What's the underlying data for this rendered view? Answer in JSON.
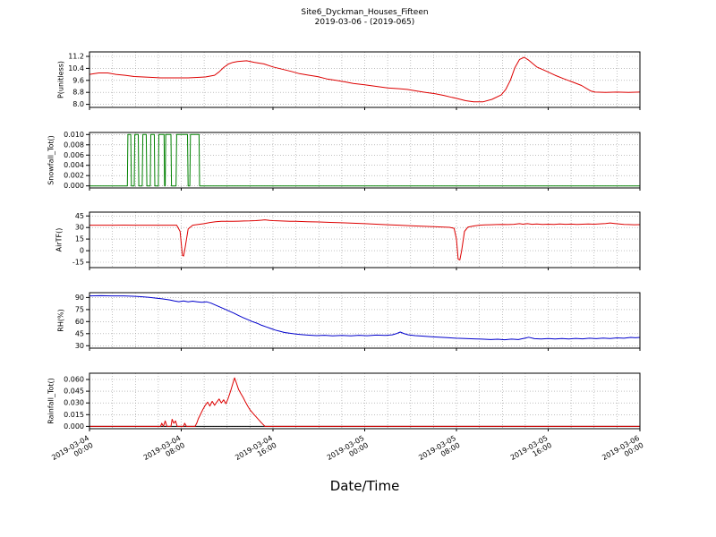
{
  "page": {
    "background": "#ffffff"
  },
  "chart_data": {
    "type": "line",
    "title": "Site6_Dyckman_Houses_Fifteen",
    "subtitle": "2019-03-06 - (2019-065)",
    "xlabel": "Date/Time",
    "x_range": [
      0,
      48
    ],
    "x_minor_step": 2,
    "grid_color": "#999999",
    "legend": "none",
    "xticks": [
      {
        "v": 0,
        "label": "2019-03-04\n00:00"
      },
      {
        "v": 8,
        "label": "2019-03-04\n08:00"
      },
      {
        "v": 16,
        "label": "2019-03-04\n16:00"
      },
      {
        "v": 24,
        "label": "2019-03-05\n00:00"
      },
      {
        "v": 32,
        "label": "2019-03-05\n08:00"
      },
      {
        "v": 40,
        "label": "2019-03-05\n16:00"
      },
      {
        "v": 48,
        "label": "2019-03-06\n00:00"
      }
    ],
    "panels": [
      {
        "ylabel": "P(unitless)",
        "color": "#dd0000",
        "ylim": [
          7.8,
          11.5
        ],
        "yticks": [
          8.0,
          8.8,
          9.6,
          10.4,
          11.2
        ],
        "ytick_labels": [
          "8.0",
          "8.8",
          "9.6",
          "10.4",
          "11.2"
        ],
        "zero_line": false,
        "x": [
          0,
          0.8,
          1.6,
          2.3,
          3.1,
          3.9,
          4.7,
          5.5,
          6.2,
          7,
          7.8,
          8.6,
          9.4,
          10.1,
          10.9,
          11.3,
          11.7,
          12.1,
          12.5,
          12.9,
          13.7,
          14.4,
          15.2,
          16,
          16.8,
          17.6,
          18.3,
          19.1,
          19.9,
          20.7,
          21.5,
          22.3,
          23,
          24,
          25,
          26,
          27,
          27.7,
          28.5,
          29.3,
          30.1,
          30.9,
          31.6,
          32,
          32.8,
          33.5,
          34.3,
          35.1,
          35.9,
          36.3,
          36.7,
          37.1,
          37.5,
          37.9,
          38.3,
          39,
          39.8,
          40.6,
          41.4,
          42.1,
          42.9,
          43.7,
          44.1,
          45,
          46,
          47,
          48
        ],
        "y": [
          10,
          10.1,
          10.1,
          10,
          9.94,
          9.86,
          9.83,
          9.8,
          9.77,
          9.77,
          9.77,
          9.77,
          9.8,
          9.83,
          9.94,
          10.17,
          10.46,
          10.69,
          10.8,
          10.86,
          10.91,
          10.8,
          10.7,
          10.5,
          10.35,
          10.2,
          10.05,
          9.95,
          9.85,
          9.7,
          9.6,
          9.5,
          9.4,
          9.31,
          9.2,
          9.1,
          9.05,
          9,
          8.9,
          8.8,
          8.72,
          8.6,
          8.47,
          8.4,
          8.25,
          8.17,
          8.17,
          8.34,
          8.63,
          9,
          9.6,
          10.45,
          11,
          11.14,
          10.95,
          10.5,
          10.23,
          9.94,
          9.7,
          9.5,
          9.26,
          8.9,
          8.82,
          8.8,
          8.82,
          8.8,
          8.82
        ]
      },
      {
        "ylabel": "Snowfall_Tot()",
        "color": "#008000",
        "ylim": [
          -0.0004,
          0.0104
        ],
        "yticks": [
          0.0,
          0.002,
          0.004,
          0.006,
          0.008,
          0.01
        ],
        "ytick_labels": [
          "0.000",
          "0.002",
          "0.004",
          "0.006",
          "0.008",
          "0.010"
        ],
        "zero_line": false,
        "x": [
          0,
          3.3,
          3.35,
          3.6,
          3.65,
          3.9,
          3.95,
          4.25,
          4.3,
          4.6,
          4.65,
          4.95,
          5,
          5.3,
          5.35,
          5.65,
          5.7,
          6,
          6.05,
          6.5,
          6.55,
          6.6,
          6.65,
          7.1,
          7.15,
          7.55,
          7.6,
          8.55,
          8.6,
          8.75,
          8.8,
          9.55,
          9.6,
          48
        ],
        "y": [
          0,
          0,
          0.01,
          0.01,
          0,
          0,
          0.01,
          0.01,
          0,
          0,
          0.01,
          0.01,
          0,
          0,
          0.01,
          0.01,
          0,
          0,
          0.01,
          0.01,
          0,
          0,
          0.01,
          0.01,
          0,
          0,
          0.01,
          0.01,
          0,
          0,
          0.01,
          0.01,
          0,
          0
        ]
      },
      {
        "ylabel": "AirTF()",
        "color": "#dd0000",
        "ylim": [
          -22,
          50
        ],
        "yticks": [
          -15,
          0,
          15,
          30,
          45
        ],
        "ytick_labels": [
          "-15",
          "0",
          "15",
          "30",
          "45"
        ],
        "zero_line": false,
        "x": [
          0,
          1,
          2,
          3,
          4,
          5,
          6,
          7,
          7.6,
          7.9,
          8.1,
          8.2,
          8.35,
          8.6,
          9,
          9.5,
          10,
          10.5,
          11,
          11.5,
          12,
          12.5,
          13,
          13.5,
          14,
          14.5,
          15,
          15.3,
          15.7,
          16,
          16.5,
          17,
          17.5,
          18,
          19,
          20,
          21,
          22,
          23,
          24,
          25,
          26,
          27,
          28,
          29,
          30,
          30.7,
          31.4,
          31.8,
          32,
          32.15,
          32.3,
          32.45,
          32.7,
          33,
          33.5,
          34,
          34.5,
          35,
          35.5,
          36,
          36.5,
          37,
          37.5,
          37.8,
          38.2,
          38.6,
          39,
          39.5,
          40,
          40.5,
          41,
          41.5,
          42,
          42.5,
          43,
          43.5,
          44,
          44.5,
          45,
          45.4,
          45.8,
          46.2,
          46.6,
          47,
          47.5,
          48
        ],
        "y": [
          33,
          33,
          33,
          33.2,
          33,
          33,
          33,
          33,
          33,
          25,
          -6,
          -7,
          5,
          28,
          33,
          34,
          35,
          36.5,
          37.5,
          38,
          38.2,
          38,
          38.3,
          38.5,
          38.6,
          39,
          39.5,
          40,
          39.3,
          39,
          38.6,
          38.4,
          38.2,
          38,
          37.6,
          37.2,
          36.7,
          36.2,
          35.6,
          35,
          34.3,
          33.6,
          33,
          32.4,
          31.8,
          31.2,
          30.7,
          30.3,
          29,
          15,
          -11,
          -12,
          0,
          25,
          30.5,
          32,
          33,
          33.4,
          33.6,
          33.8,
          34,
          33.8,
          34.2,
          35,
          34.3,
          35,
          34.2,
          34.5,
          34,
          34.3,
          34,
          34.5,
          34.2,
          34.4,
          34.1,
          34.3,
          34.6,
          34.3,
          34.8,
          35.3,
          36,
          35.2,
          34.5,
          34,
          33.8,
          33.6,
          33.7
        ]
      },
      {
        "ylabel": "RH(%)",
        "color": "#0000cc",
        "ylim": [
          27,
          96
        ],
        "yticks": [
          30,
          45,
          60,
          75,
          90
        ],
        "ytick_labels": [
          "30",
          "45",
          "60",
          "75",
          "90"
        ],
        "zero_line": false,
        "x": [
          0,
          1,
          2,
          3,
          3.8,
          4.5,
          5.2,
          5.8,
          6.4,
          7,
          7.4,
          7.8,
          8.2,
          8.6,
          9,
          9.4,
          9.8,
          10.2,
          10.6,
          11,
          11.4,
          11.8,
          12.2,
          12.6,
          13,
          13.4,
          13.8,
          14.2,
          14.6,
          15,
          15.4,
          15.8,
          16.2,
          16.6,
          17,
          17.5,
          18,
          18.5,
          19,
          19.8,
          20.5,
          21.2,
          22,
          22.8,
          23.5,
          24.2,
          25,
          25.8,
          26.4,
          26.8,
          27.1,
          27.4,
          27.8,
          28.4,
          29,
          29.8,
          30.5,
          31.2,
          32,
          32.8,
          33.5,
          34.2,
          35,
          35.6,
          36.2,
          36.8,
          37.4,
          38,
          38.3,
          38.8,
          39.4,
          40,
          40.6,
          41.2,
          41.8,
          42.4,
          43,
          43.6,
          44.2,
          44.8,
          45.4,
          46,
          46.6,
          47.2,
          47.6,
          48
        ],
        "y": [
          92,
          92.2,
          92,
          92,
          91.6,
          91,
          90.2,
          89.2,
          88.2,
          87,
          85.8,
          84.8,
          85.6,
          84.6,
          85.4,
          84.6,
          84,
          84.6,
          83,
          80.5,
          78,
          75.5,
          73,
          70.5,
          67.5,
          65,
          62.5,
          60,
          58,
          55.5,
          53.5,
          51.5,
          49.5,
          48,
          46.5,
          45.5,
          44.5,
          43.8,
          43.2,
          42.6,
          43,
          42.3,
          42.8,
          42.2,
          43,
          42.5,
          43.3,
          42.8,
          43.6,
          45.2,
          47,
          45.3,
          43.6,
          42.6,
          42,
          41.3,
          40.6,
          40,
          39.4,
          39,
          38.6,
          38.2,
          37.7,
          38.1,
          37.5,
          38.2,
          37.7,
          39.6,
          40.6,
          38.8,
          38.4,
          38.9,
          38.3,
          39,
          38.4,
          39.1,
          38.6,
          39.4,
          38.8,
          39.6,
          39,
          39.8,
          39.4,
          40.4,
          39.9,
          40.3
        ]
      },
      {
        "ylabel": "Rainfall_Tot()",
        "color": "#dd0000",
        "ylim": [
          -0.003,
          0.068
        ],
        "yticks": [
          0.0,
          0.015,
          0.03,
          0.045,
          0.06
        ],
        "ytick_labels": [
          "0.000",
          "0.015",
          "0.030",
          "0.045",
          "0.060"
        ],
        "zero_line": true,
        "x": [
          0,
          6.2,
          6.3,
          6.45,
          6.6,
          6.75,
          7.1,
          7.2,
          7.35,
          7.5,
          7.65,
          8.2,
          8.3,
          8.45,
          9.2,
          9.35,
          9.5,
          9.7,
          9.9,
          10.1,
          10.3,
          10.5,
          10.7,
          10.9,
          11.1,
          11.3,
          11.5,
          11.7,
          11.9,
          12.1,
          12.3,
          12.5,
          12.65,
          12.8,
          13,
          13.2,
          13.4,
          13.6,
          13.8,
          14,
          14.3,
          14.6,
          14.9,
          15.1,
          15.3,
          48
        ],
        "y": [
          0,
          0,
          0.004,
          0,
          0.007,
          0,
          0,
          0.009,
          0.004,
          0.007,
          0,
          0,
          0.004,
          0,
          0,
          0.004,
          0.01,
          0.016,
          0.022,
          0.027,
          0.031,
          0.026,
          0.032,
          0.027,
          0.031,
          0.035,
          0.03,
          0.034,
          0.029,
          0.036,
          0.045,
          0.055,
          0.062,
          0.056,
          0.047,
          0.042,
          0.037,
          0.031,
          0.026,
          0.021,
          0.016,
          0.011,
          0.006,
          0.003,
          0,
          0
        ]
      }
    ]
  }
}
